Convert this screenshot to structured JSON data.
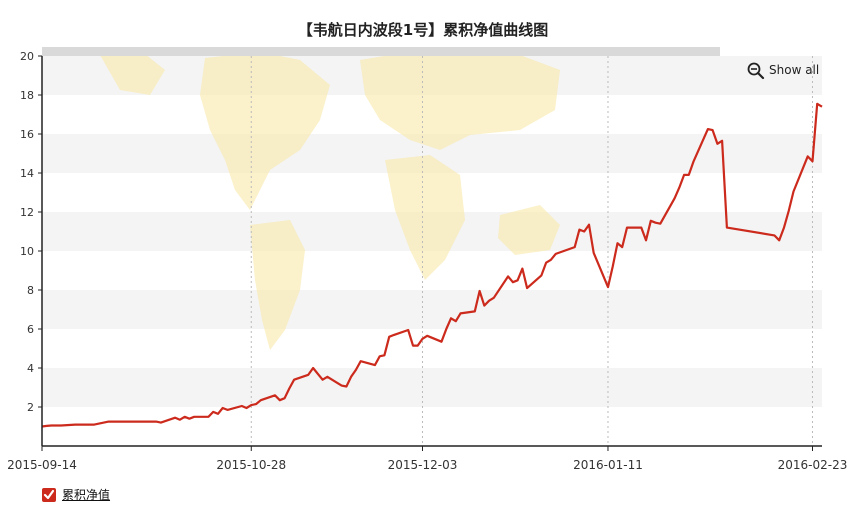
{
  "colors": {
    "series": "#cc2a1c",
    "band": "#f4f4f4",
    "axis": "#222222",
    "map": "#f8e7a6",
    "scrollbar": "#d9d9d9"
  },
  "show_all": {
    "label": "Show all",
    "icon": "zoom-out-icon"
  },
  "legend": {
    "label": "累积净值",
    "icon": "check-icon"
  },
  "chart_data": {
    "type": "line",
    "title": "【韦航日内波段1号】累积净值曲线图",
    "xlabel": "",
    "ylabel": "",
    "ylim": [
      0,
      20
    ],
    "yticks": [
      2,
      4,
      6,
      8,
      10,
      12,
      14,
      16,
      18,
      20
    ],
    "xlim": [
      "2015-09-14",
      "2016-02-25"
    ],
    "xticks": [
      "2015-09-14",
      "2015-10-28",
      "2015-12-03",
      "2016-01-11",
      "2016-02-23"
    ],
    "grid": "alternating horizontal bands, dotted vertical lines at x ticks",
    "legend_position": "bottom-left",
    "series": [
      {
        "name": "累积净值",
        "x": [
          "2015-09-14",
          "2015-09-15",
          "2015-09-16",
          "2015-09-17",
          "2015-09-18",
          "2015-09-21",
          "2015-09-22",
          "2015-09-23",
          "2015-09-24",
          "2015-09-25",
          "2015-09-28",
          "2015-09-29",
          "2015-09-30",
          "2015-10-08",
          "2015-10-09",
          "2015-10-12",
          "2015-10-13",
          "2015-10-14",
          "2015-10-15",
          "2015-10-16",
          "2015-10-19",
          "2015-10-20",
          "2015-10-21",
          "2015-10-22",
          "2015-10-23",
          "2015-10-26",
          "2015-10-27",
          "2015-10-28",
          "2015-10-29",
          "2015-10-30",
          "2015-11-02",
          "2015-11-03",
          "2015-11-04",
          "2015-11-05",
          "2015-11-06",
          "2015-11-09",
          "2015-11-10",
          "2015-11-11",
          "2015-11-12",
          "2015-11-13",
          "2015-11-16",
          "2015-11-17",
          "2015-11-18",
          "2015-11-19",
          "2015-11-20",
          "2015-11-23",
          "2015-11-24",
          "2015-11-25",
          "2015-11-26",
          "2015-11-27",
          "2015-11-30",
          "2015-12-01",
          "2015-12-02",
          "2015-12-03",
          "2015-12-04",
          "2015-12-07",
          "2015-12-08",
          "2015-12-09",
          "2015-12-10",
          "2015-12-11",
          "2015-12-14",
          "2015-12-15",
          "2015-12-16",
          "2015-12-17",
          "2015-12-18",
          "2015-12-21",
          "2015-12-22",
          "2015-12-23",
          "2015-12-24",
          "2015-12-25",
          "2015-12-28",
          "2015-12-29",
          "2015-12-30",
          "2015-12-31",
          "2016-01-04",
          "2016-01-05",
          "2016-01-06",
          "2016-01-07",
          "2016-01-08",
          "2016-01-11",
          "2016-01-12",
          "2016-01-13",
          "2016-01-14",
          "2016-01-15",
          "2016-01-18",
          "2016-01-19",
          "2016-01-20",
          "2016-01-21",
          "2016-01-22",
          "2016-01-25",
          "2016-01-26",
          "2016-01-27",
          "2016-01-28",
          "2016-01-29",
          "2016-02-01",
          "2016-02-02",
          "2016-02-03",
          "2016-02-04",
          "2016-02-05",
          "2016-02-15",
          "2016-02-16",
          "2016-02-17",
          "2016-02-18",
          "2016-02-19",
          "2016-02-22",
          "2016-02-23",
          "2016-02-24",
          "2016-02-25"
        ],
        "values": [
          1.0,
          1.03,
          1.05,
          1.05,
          1.05,
          1.1,
          1.1,
          1.1,
          1.1,
          1.1,
          1.25,
          1.25,
          1.25,
          1.25,
          1.2,
          1.45,
          1.35,
          1.5,
          1.4,
          1.5,
          1.5,
          1.75,
          1.65,
          1.95,
          1.85,
          2.05,
          1.95,
          2.1,
          2.15,
          2.35,
          2.6,
          2.35,
          2.45,
          2.95,
          3.4,
          3.65,
          4.0,
          3.7,
          3.4,
          3.55,
          3.1,
          3.05,
          3.55,
          3.9,
          4.35,
          4.15,
          4.6,
          4.65,
          5.6,
          5.7,
          5.95,
          5.15,
          5.15,
          5.5,
          5.65,
          5.35,
          6.0,
          6.55,
          6.4,
          6.8,
          6.9,
          7.95,
          7.2,
          7.45,
          7.6,
          8.7,
          8.4,
          8.5,
          9.1,
          8.1,
          8.75,
          9.4,
          9.55,
          9.85,
          10.2,
          11.1,
          11.0,
          11.35,
          9.9,
          8.15,
          9.2,
          10.4,
          10.2,
          11.2,
          11.2,
          10.55,
          11.55,
          11.45,
          11.4,
          12.7,
          13.25,
          13.9,
          13.9,
          14.6,
          16.25,
          16.2,
          15.5,
          15.65,
          11.2,
          10.8,
          10.55,
          11.2,
          12.05,
          13.05,
          14.85,
          14.6,
          17.55,
          17.4
        ]
      }
    ]
  }
}
